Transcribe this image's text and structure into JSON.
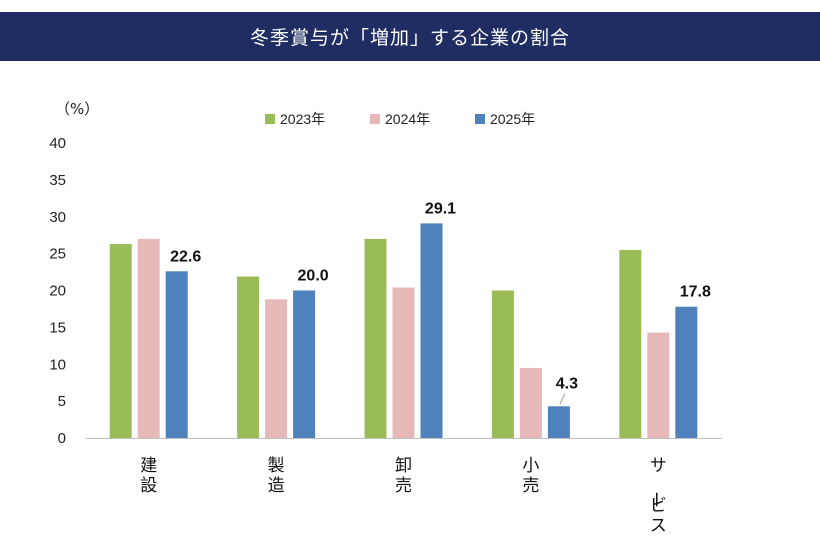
{
  "title": "冬季賞与が「増加」する企業の割合",
  "chart_data": {
    "type": "bar",
    "title": "冬季賞与が「増加」する企業の割合",
    "ylabel": "（%）",
    "xlabel": "",
    "ylim": [
      0,
      40
    ],
    "yticks": [
      0,
      5,
      10,
      15,
      20,
      25,
      30,
      35,
      40
    ],
    "categories": [
      "建設",
      "製造",
      "卸売",
      "小売",
      "サービス"
    ],
    "series": [
      {
        "name": "2023年",
        "color": "#9bbb59",
        "values": [
          26.3,
          21.9,
          27.0,
          20.0,
          25.5
        ]
      },
      {
        "name": "2024年",
        "color": "#e6b9b8",
        "values": [
          27.0,
          18.8,
          20.4,
          9.5,
          14.3
        ]
      },
      {
        "name": "2025年",
        "color": "#4f81bd",
        "values": [
          22.6,
          20.0,
          29.1,
          4.3,
          17.8
        ]
      }
    ],
    "data_labels": {
      "series": "2025年",
      "values": [
        "22.6",
        "20.0",
        "29.1",
        "4.3",
        "17.8"
      ]
    },
    "legend_position": "top-center",
    "grid": false
  }
}
